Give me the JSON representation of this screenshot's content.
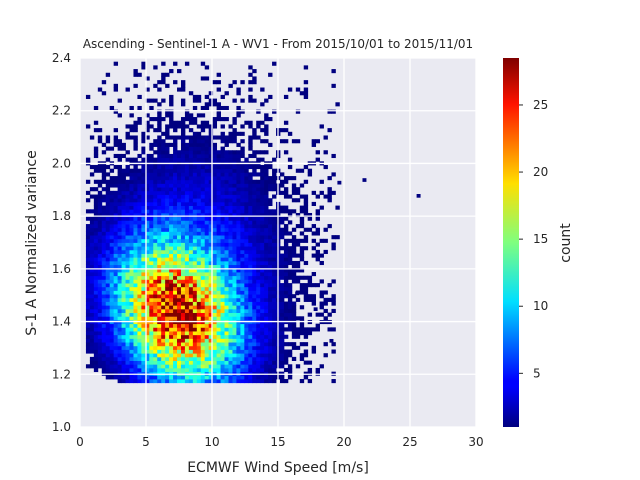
{
  "chart_data": {
    "type": "heatmap",
    "title": "Ascending - Sentinel-1 A - WV1 - From 2015/10/01 to 2015/11/01",
    "xlabel": "ECMWF Wind Speed [m/s]",
    "ylabel": "S-1 A Normalized variance",
    "xlim": [
      0,
      30
    ],
    "ylim": [
      1.0,
      2.4
    ],
    "xticks": [
      "0",
      "5",
      "10",
      "15",
      "20",
      "25",
      "30"
    ],
    "yticks": [
      "1.0",
      "1.2",
      "1.4",
      "1.6",
      "1.8",
      "2.0",
      "2.2",
      "2.4"
    ],
    "grid": true,
    "colorbar": {
      "label": "count",
      "colormap": "jet",
      "range": [
        1,
        28.5
      ],
      "ticks": [
        "5",
        "10",
        "15",
        "20",
        "25"
      ]
    },
    "density_peak": {
      "x": 7.2,
      "y": 1.42,
      "count": 28
    },
    "density_spread": {
      "x": 3.0,
      "y": 0.17
    },
    "bins": {
      "x_width": 0.3,
      "y_width": 0.014
    },
    "outliers": [
      [
        19.5,
        1.92
      ],
      [
        21.4,
        1.93
      ],
      [
        25.5,
        1.87
      ],
      [
        18.9,
        1.32
      ],
      [
        17.7,
        1.44
      ],
      [
        16.3,
        1.5
      ]
    ],
    "colors": {
      "background": "#eaeaf2",
      "grid": "#ffffff",
      "text": "#262626"
    }
  }
}
